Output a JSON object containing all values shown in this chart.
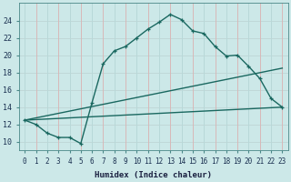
{
  "xlabel": "Humidex (Indice chaleur)",
  "bg_color": "#cce8e8",
  "grid_color_x_pink": "#d8b8b8",
  "grid_color_x_cyan": "#b8d8d8",
  "grid_color_y": "#c0d8d8",
  "line_color": "#1a6860",
  "xlim": [
    -0.5,
    23.5
  ],
  "ylim": [
    9,
    26
  ],
  "xticks": [
    0,
    1,
    2,
    3,
    4,
    5,
    6,
    7,
    8,
    9,
    10,
    11,
    12,
    13,
    14,
    15,
    16,
    17,
    18,
    19,
    20,
    21,
    22,
    23
  ],
  "yticks": [
    10,
    12,
    14,
    16,
    18,
    20,
    22,
    24
  ],
  "series1_x": [
    0,
    1,
    2,
    3,
    4,
    5,
    6,
    7,
    8,
    9,
    10,
    11,
    12,
    13,
    14,
    15,
    16,
    17,
    18,
    19,
    20,
    21,
    22,
    23
  ],
  "series1_y": [
    12.5,
    12.0,
    11.0,
    10.5,
    10.5,
    9.8,
    14.5,
    19.0,
    20.5,
    21.0,
    22.0,
    23.0,
    23.8,
    24.7,
    24.1,
    22.8,
    22.5,
    21.0,
    19.9,
    20.0,
    18.7,
    17.3,
    15.0,
    14.0
  ],
  "series2_x": [
    0,
    23
  ],
  "series2_y": [
    12.5,
    14.0
  ],
  "series3_x": [
    0,
    23
  ],
  "series3_y": [
    12.5,
    18.5
  ],
  "xlabel_fontsize": 6.5,
  "tick_fontsize": 5.5
}
